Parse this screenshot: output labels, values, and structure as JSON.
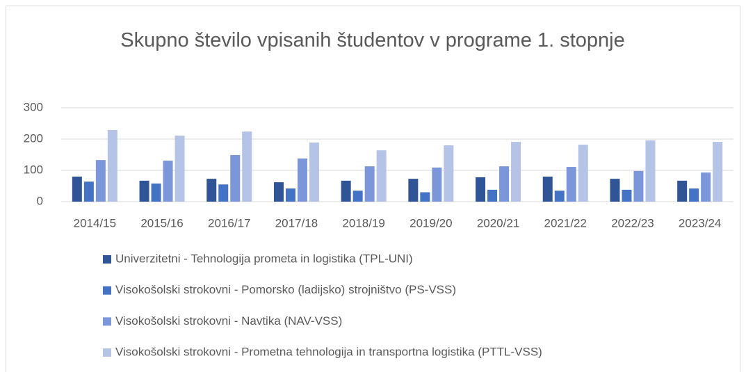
{
  "chart_data": {
    "type": "bar",
    "title": "Skupno število vpisanih študentov v programe 1. stopnje",
    "categories": [
      "2014/15",
      "2015/16",
      "2016/17",
      "2017/18",
      "2018/19",
      "2019/20",
      "2020/21",
      "2021/22",
      "2022/23",
      "2023/24"
    ],
    "series": [
      {
        "name": "Univerzitetni - Tehnologija prometa in logistika (TPL-UNI)",
        "color": "#2f5597",
        "values": [
          80,
          67,
          73,
          62,
          67,
          73,
          78,
          80,
          73,
          67
        ]
      },
      {
        "name": "Visokošolski strokovni - Pomorsko (ladijsko) strojništvo (PS-VSS)",
        "color": "#4472c4",
        "values": [
          64,
          58,
          55,
          42,
          35,
          30,
          38,
          35,
          38,
          42
        ]
      },
      {
        "name": "Visokošolski strokovni - Navtika (NAV-VSS)",
        "color": "#7b97d9",
        "values": [
          133,
          131,
          149,
          138,
          113,
          109,
          113,
          111,
          98,
          93
        ]
      },
      {
        "name": "Visokošolski strokovni - Prometna tehnologija in transportna logistika (PTTL-VSS)",
        "color": "#b4c3e6",
        "values": [
          229,
          211,
          224,
          189,
          164,
          180,
          191,
          182,
          196,
          191
        ]
      }
    ],
    "ylim": [
      0,
      300
    ],
    "yticks": [
      0,
      100,
      200,
      300
    ],
    "grid": true,
    "legend": "bottom"
  }
}
